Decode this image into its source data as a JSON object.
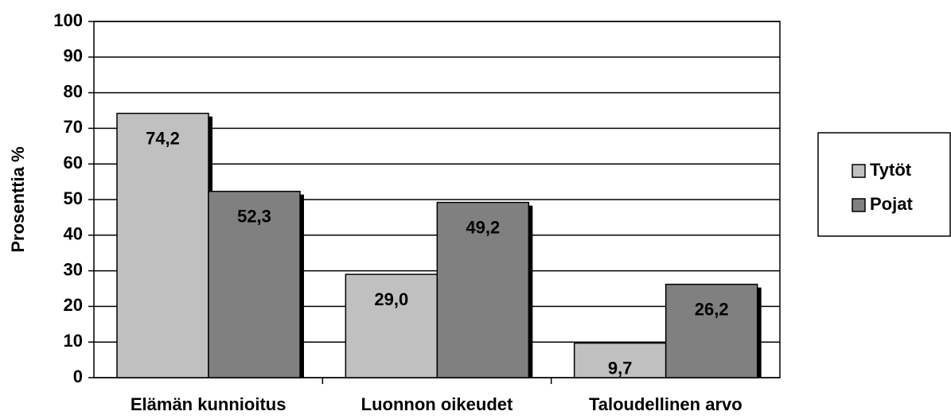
{
  "chart_data": {
    "type": "bar",
    "ylabel": "Prosenttia %",
    "categories": [
      "Elämän kunnioitus",
      "Luonnon oikeudet",
      "Taloudellinen arvo"
    ],
    "series": [
      {
        "name": "Tytöt",
        "color": "#c0c0c0",
        "values": [
          74.2,
          29.0,
          9.7
        ],
        "value_labels": [
          "74,2",
          "29,0",
          "9,7"
        ]
      },
      {
        "name": "Pojat",
        "color": "#808080",
        "values": [
          52.3,
          49.2,
          26.2
        ],
        "value_labels": [
          "52,3",
          "49,2",
          "26,2"
        ]
      }
    ],
    "ylim": [
      0,
      100
    ],
    "yticks": [
      0,
      10,
      20,
      30,
      40,
      50,
      60,
      70,
      80,
      90,
      100
    ],
    "grid": true,
    "legend": "right"
  }
}
